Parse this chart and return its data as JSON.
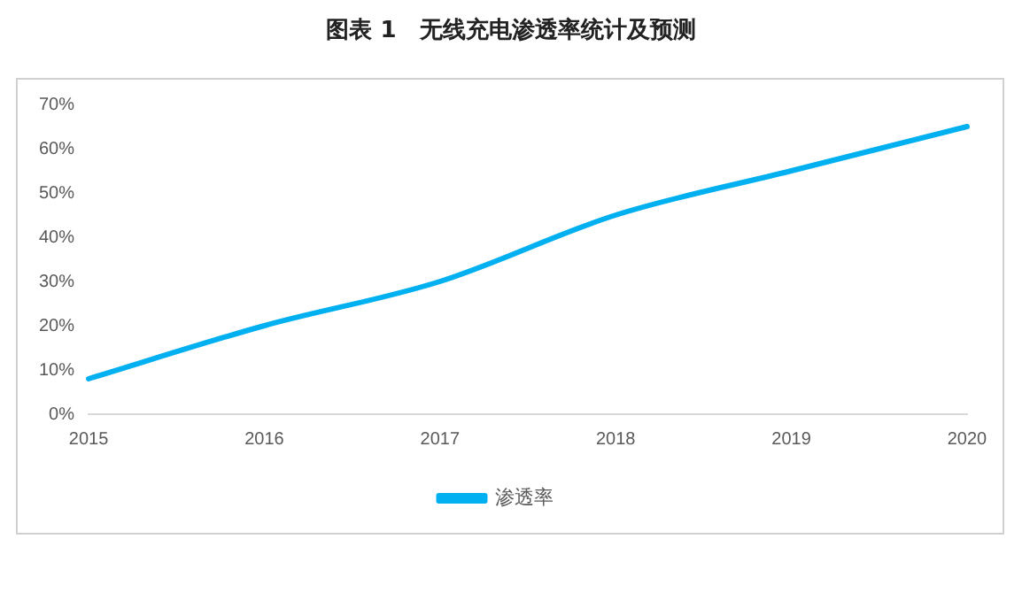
{
  "chart_data": {
    "type": "line",
    "title": "图表 1　无线充电渗透率统计及预测",
    "categories": [
      "2015",
      "2016",
      "2017",
      "2018",
      "2019",
      "2020"
    ],
    "series": [
      {
        "name": "渗透率",
        "color": "#00b0f0",
        "values": [
          8,
          20,
          30,
          45,
          55,
          65
        ]
      }
    ],
    "ylim": [
      0,
      70
    ],
    "yticks": [
      {
        "value": 0,
        "label": "0%"
      },
      {
        "value": 10,
        "label": "10%"
      },
      {
        "value": 20,
        "label": "20%"
      },
      {
        "value": 30,
        "label": "30%"
      },
      {
        "value": 40,
        "label": "40%"
      },
      {
        "value": 50,
        "label": "50%"
      },
      {
        "value": 60,
        "label": "60%"
      },
      {
        "value": 70,
        "label": "70%"
      }
    ],
    "grid": false,
    "legend": "bottom",
    "marker": "none",
    "line_style": "solid"
  }
}
